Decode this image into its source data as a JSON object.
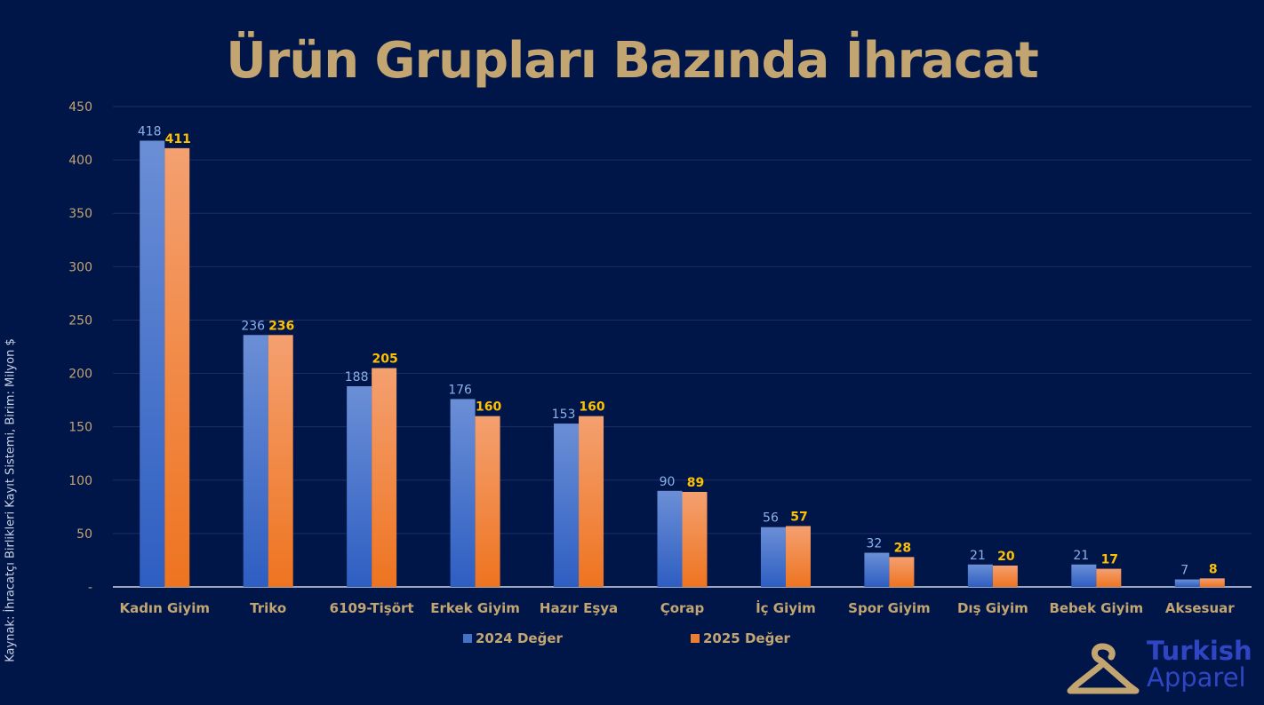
{
  "chart_data": {
    "type": "bar",
    "title": "Ürün Grupları Bazında İhracat",
    "source_note": "Kaynak: İhracatçı Birlikleri Kayıt Sistemi, Birim: Milyon $",
    "categories": [
      "Kadın Giyim",
      "Triko",
      "6109-Tişört",
      "Erkek Giyim",
      "Hazır Eşya",
      "Çorap",
      "İç Giyim",
      "Spor Giyim",
      "Dış Giyim",
      "Bebek Giyim",
      "Aksesuar"
    ],
    "series": [
      {
        "name": "2024 Değer",
        "values": [
          418,
          236,
          188,
          176,
          153,
          90,
          56,
          32,
          21,
          21,
          7
        ],
        "color": "#4472c4"
      },
      {
        "name": "2025 Değer",
        "values": [
          411,
          236,
          205,
          160,
          160,
          89,
          57,
          28,
          20,
          17,
          8
        ],
        "color": "#ed7d31"
      }
    ],
    "ylim": [
      0,
      450
    ],
    "yticks": [
      0,
      50,
      100,
      150,
      200,
      250,
      300,
      350,
      400,
      450
    ],
    "ytick_labels": [
      "-",
      "50",
      "100",
      "150",
      "200",
      "250",
      "300",
      "350",
      "400",
      "450"
    ],
    "grid": true,
    "legend_position": "bottom",
    "colors": {
      "background": "#001649",
      "title": "#c3a572",
      "axis_text": "#c3a572",
      "label_2024": "#8db0e8",
      "label_2025": "#ffc000",
      "grid": "#1c2d63"
    }
  },
  "logo": {
    "line1": "Turkish",
    "line2": "Apparel"
  }
}
